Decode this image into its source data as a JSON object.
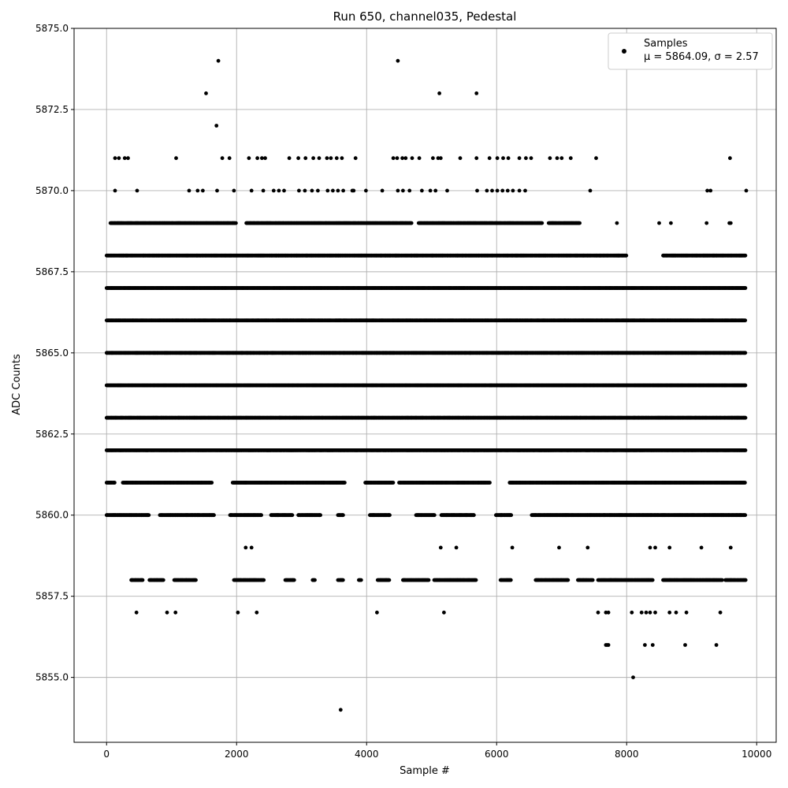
{
  "chart_data": {
    "type": "scatter",
    "title": "Run 650, channel035, Pedestal",
    "xlabel": "Sample #",
    "ylabel": "ADC Counts",
    "xlim": [
      -500,
      10300
    ],
    "ylim": [
      5853,
      5875
    ],
    "xticks": [
      0,
      2000,
      4000,
      6000,
      8000,
      10000
    ],
    "yticks": [
      5855.0,
      5857.5,
      5860.0,
      5862.5,
      5865.0,
      5867.5,
      5870.0,
      5872.5,
      5875.0
    ],
    "xtick_labels": [
      "0",
      "2000",
      "4000",
      "6000",
      "8000",
      "10000"
    ],
    "ytick_labels": [
      "5855.0",
      "5857.5",
      "5860.0",
      "5862.5",
      "5865.0",
      "5867.5",
      "5870.0",
      "5872.5",
      "5875.0"
    ],
    "grid": true,
    "legend": {
      "placement": "top-right",
      "series_name": "Samples",
      "stats_label": "μ = 5864.09, σ = 2.57"
    },
    "series": [
      {
        "name": "Samples",
        "color": "#000000",
        "n_samples": 9830,
        "mean": 5864.09,
        "sigma": 2.57,
        "levels": [
          {
            "y": 5854,
            "x": [
              3600
            ]
          },
          {
            "y": 5855,
            "x": [
              8100
            ]
          },
          {
            "y": 5856,
            "x": [
              7680,
              7700,
              7720,
              8280,
              8400,
              8900,
              9380
            ]
          },
          {
            "y": 5857,
            "x": [
              460,
              930,
              1060,
              2020,
              2310,
              4160,
              5190,
              7560,
              7680,
              7720,
              8080,
              8230,
              8300,
              8360,
              8440,
              8660,
              8760,
              8920,
              9440
            ]
          },
          {
            "y": 5858,
            "x_ranges": [
              [
                380,
                560
              ],
              [
                660,
                880
              ],
              [
                1040,
                1380
              ],
              [
                1960,
                2420
              ],
              [
                2750,
                2890
              ],
              [
                3170,
                3210
              ],
              [
                3560,
                3640
              ],
              [
                3880,
                3920
              ],
              [
                4170,
                4350
              ],
              [
                4560,
                4960
              ],
              [
                5040,
                5690
              ],
              [
                6060,
                6220
              ],
              [
                6600,
                7100
              ],
              [
                7250,
                7480
              ],
              [
                7560,
                8400
              ],
              [
                8560,
                9470
              ],
              [
                9520,
                9830
              ]
            ]
          },
          {
            "y": 5859,
            "x": [
              2140,
              2230,
              5140,
              5380,
              6240,
              6960,
              7400,
              8360,
              8440,
              8660,
              9150,
              9600
            ]
          },
          {
            "y": 5860,
            "x_ranges": [
              [
                0,
                650
              ],
              [
                820,
                1660
              ],
              [
                1900,
                2390
              ],
              [
                2530,
                2860
              ],
              [
                2950,
                3290
              ],
              [
                3560,
                3640
              ],
              [
                4050,
                4360
              ],
              [
                4760,
                5050
              ],
              [
                5150,
                5650
              ],
              [
                5990,
                6230
              ],
              [
                6540,
                9830
              ]
            ]
          },
          {
            "y": 5861,
            "x_ranges": [
              [
                0,
                130
              ],
              [
                250,
                1620
              ],
              [
                1940,
                3670
              ],
              [
                3980,
                4410
              ],
              [
                4500,
                5900
              ],
              [
                6200,
                9830
              ]
            ]
          },
          {
            "y": 5862,
            "x_ranges": [
              [
                0,
                9830
              ]
            ]
          },
          {
            "y": 5863,
            "x_ranges": [
              [
                0,
                9830
              ]
            ]
          },
          {
            "y": 5864,
            "x_ranges": [
              [
                0,
                9830
              ]
            ]
          },
          {
            "y": 5865,
            "x_ranges": [
              [
                0,
                9830
              ]
            ]
          },
          {
            "y": 5866,
            "x_ranges": [
              [
                0,
                9830
              ]
            ]
          },
          {
            "y": 5867,
            "x_ranges": [
              [
                0,
                9830
              ]
            ]
          },
          {
            "y": 5868,
            "x_ranges": [
              [
                0,
                8000
              ],
              [
                8560,
                9830
              ]
            ]
          },
          {
            "y": 5869,
            "x_ranges": [
              [
                60,
                2000
              ],
              [
                2150,
                4700
              ],
              [
                4800,
                6700
              ],
              [
                6800,
                7280
              ]
            ],
            "x": [
              7850,
              8500,
              8680,
              9230,
              9580,
              9600
            ]
          },
          {
            "y": 5870,
            "x": [
              130,
              470,
              1270,
              1400,
              1480,
              1700,
              1960,
              2230,
              2410,
              2570,
              2650,
              2730,
              2960,
              3050,
              3160,
              3250,
              3400,
              3480,
              3560,
              3640,
              3780,
              3800,
              3990,
              4240,
              4480,
              4560,
              4660,
              4850,
              4980,
              5060,
              5240,
              5700,
              5850,
              5930,
              6010,
              6090,
              6170,
              6250,
              6350,
              6440,
              7440,
              9240,
              9290,
              9840
            ]
          },
          {
            "y": 5871,
            "x": [
              130,
              190,
              280,
              330,
              1070,
              1780,
              1890,
              2190,
              2320,
              2390,
              2440,
              2810,
              2950,
              3060,
              3180,
              3270,
              3390,
              3450,
              3540,
              3620,
              3830,
              4410,
              4470,
              4550,
              4600,
              4700,
              4810,
              5020,
              5100,
              5140,
              5440,
              5690,
              5890,
              6010,
              6100,
              6180,
              6350,
              6450,
              6530,
              6820,
              6930,
              7000,
              7140,
              7530,
              9590
            ]
          },
          {
            "y": 5872,
            "x": [
              1690
            ]
          },
          {
            "y": 5873,
            "x": [
              1530,
              5120,
              5690
            ]
          },
          {
            "y": 5874,
            "x": [
              1720,
              4480
            ]
          }
        ]
      }
    ]
  }
}
